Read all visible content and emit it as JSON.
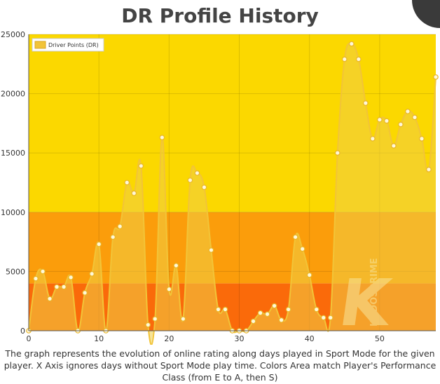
{
  "header": {
    "title": "DR Profile History"
  },
  "caption": "The graph represents the evolution of online rating along days played in Sport Mode for the given player. X Axis ignores days without Sport Mode play time. Colors Area match Player's Performance Class (from E to A, then S)",
  "watermark": {
    "brand": "KUDOSPRIME",
    "letter": "K"
  },
  "chart_data": {
    "type": "area",
    "title": "DR Profile History",
    "xlabel": "",
    "ylabel": "",
    "xlim": [
      0,
      58
    ],
    "ylim": [
      0,
      25000
    ],
    "x_ticks": [
      "0",
      "10",
      "20",
      "30",
      "40",
      "50"
    ],
    "y_ticks": [
      "0",
      "5000",
      "10000",
      "15000",
      "20000",
      "25000"
    ],
    "legend": {
      "position": "top-left",
      "entries": [
        "Driver Points (DR)"
      ]
    },
    "bands": [
      {
        "from": 0,
        "to": 4000,
        "color": "#fa6a0a"
      },
      {
        "from": 4000,
        "to": 10000,
        "color": "#fb9d0b"
      },
      {
        "from": 10000,
        "to": 25000,
        "color": "#fbd800"
      }
    ],
    "series": [
      {
        "name": "Driver Points (DR)",
        "color": "#f2c438",
        "x": [
          0,
          1,
          2,
          3,
          4,
          5,
          6,
          7,
          8,
          9,
          10,
          11,
          12,
          13,
          14,
          15,
          16,
          17,
          18,
          19,
          20,
          21,
          22,
          23,
          24,
          25,
          26,
          27,
          28,
          29,
          30,
          31,
          32,
          33,
          34,
          35,
          36,
          37,
          38,
          39,
          40,
          41,
          42,
          43,
          44,
          45,
          46,
          47,
          48,
          49,
          50,
          51,
          52,
          53,
          54,
          55,
          56,
          57,
          58
        ],
        "values": [
          0,
          4400,
          5000,
          2700,
          3700,
          3700,
          4500,
          0,
          3200,
          4800,
          7300,
          0,
          7900,
          8800,
          12500,
          11600,
          13900,
          500,
          1000,
          16300,
          3500,
          5500,
          1000,
          12700,
          13300,
          12100,
          6800,
          1800,
          1800,
          0,
          0,
          0,
          800,
          1500,
          1400,
          2100,
          900,
          1800,
          7900,
          6900,
          4700,
          1800,
          1100,
          1100,
          15000,
          22900,
          24200,
          22900,
          19200,
          16200,
          17800,
          17700,
          15600,
          17400,
          18500,
          18000,
          16200,
          13600,
          21400
        ]
      }
    ]
  }
}
